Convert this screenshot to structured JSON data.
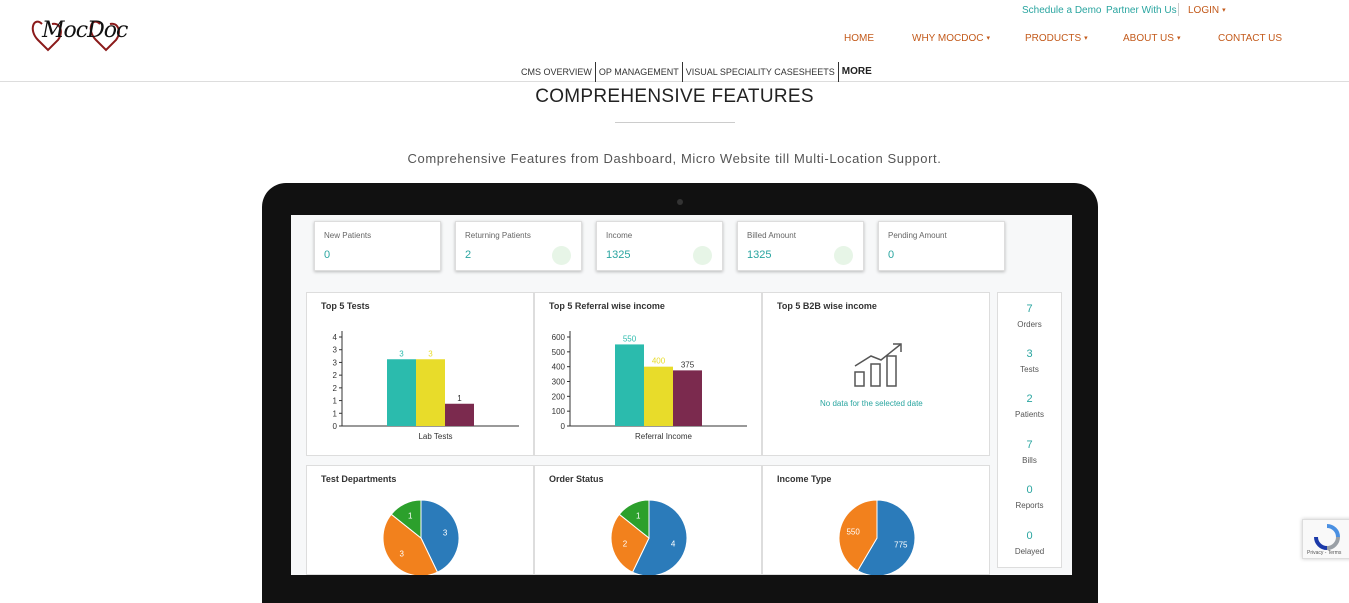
{
  "header": {
    "logo_alt": "MocDoc",
    "utility": {
      "schedule_demo": "Schedule a Demo",
      "partner": "Partner With Us",
      "login": "LOGIN"
    },
    "nav": {
      "home": "HOME",
      "why": "WHY MOCDOC",
      "products": "PRODUCTS",
      "about": "ABOUT US",
      "contact": "CONTACT US"
    },
    "subnav": [
      "CMS OVERVIEW",
      "OP MANAGEMENT",
      "VISUAL SPECIALITY CASESHEETS",
      "MORE"
    ]
  },
  "main": {
    "title": "COMPREHENSIVE FEATURES",
    "subtitle": "Comprehensive Features from Dashboard, Micro Website till Multi-Location Support."
  },
  "dashboard": {
    "stats": [
      {
        "label": "New Patients",
        "value": "0"
      },
      {
        "label": "Returning Patients",
        "value": "2"
      },
      {
        "label": "Income",
        "value": "1325"
      },
      {
        "label": "Billed Amount",
        "value": "1325"
      },
      {
        "label": "Pending Amount",
        "value": "0"
      }
    ],
    "side": [
      {
        "num": "7",
        "label": "Orders"
      },
      {
        "num": "3",
        "label": "Tests"
      },
      {
        "num": "2",
        "label": "Patients"
      },
      {
        "num": "7",
        "label": "Bills"
      },
      {
        "num": "0",
        "label": "Reports"
      },
      {
        "num": "0",
        "label": "Delayed"
      }
    ],
    "panels": {
      "top_tests": "Top 5 Tests",
      "referral": "Top 5 Referral wise income",
      "b2b": "Top 5 B2B wise income",
      "b2b_nodata": "No data for the selected date",
      "test_departments": "Test Departments",
      "order_status": "Order Status",
      "income_type": "Income Type"
    }
  },
  "chart_data": [
    {
      "type": "bar",
      "title": "Top 5 Tests",
      "xlabel": "Lab Tests",
      "values": [
        3,
        3,
        1
      ],
      "ylim": [
        0,
        4
      ],
      "yticks": [
        "0",
        "1",
        "1",
        "2",
        "2",
        "3",
        "3",
        "4"
      ],
      "colors": [
        "#2bbbad",
        "#e8dc2a",
        "#7b2a4e"
      ]
    },
    {
      "type": "bar",
      "title": "Top 5 Referral wise income",
      "xlabel": "Referral Income",
      "values": [
        550,
        400,
        375
      ],
      "ylim": [
        0,
        600
      ],
      "yticks": [
        "0",
        "100",
        "200",
        "300",
        "400",
        "500",
        "600"
      ],
      "colors": [
        "#2bbbad",
        "#e8dc2a",
        "#7b2a4e"
      ]
    },
    {
      "type": "pie",
      "title": "Test Departments",
      "slices": [
        {
          "label": "3",
          "value": 3,
          "color": "#2b7bba"
        },
        {
          "label": "3",
          "value": 3,
          "color": "#f2811d"
        },
        {
          "label": "1",
          "value": 1,
          "color": "#2ca02c"
        }
      ]
    },
    {
      "type": "pie",
      "title": "Order Status",
      "slices": [
        {
          "label": "4",
          "value": 4,
          "color": "#2b7bba"
        },
        {
          "label": "2",
          "value": 2,
          "color": "#f2811d"
        },
        {
          "label": "1",
          "value": 1,
          "color": "#2ca02c"
        }
      ]
    },
    {
      "type": "pie",
      "title": "Income Type",
      "slices": [
        {
          "label": "775",
          "value": 775,
          "color": "#2b7bba"
        },
        {
          "label": "550",
          "value": 550,
          "color": "#f2811d"
        }
      ]
    }
  ],
  "colors": {
    "accent": "#2aa5a0",
    "nav": "#c35a1b"
  }
}
